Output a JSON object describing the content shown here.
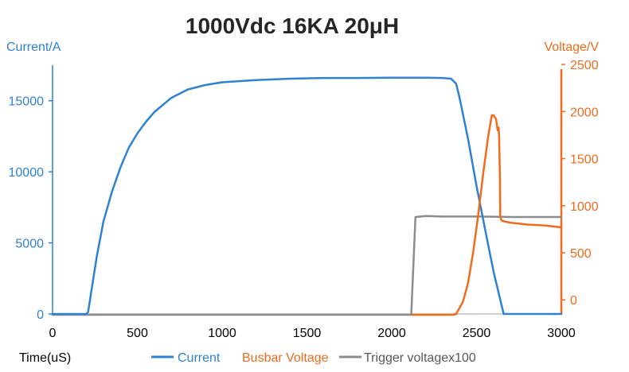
{
  "chart_data": {
    "type": "line",
    "title": "1000Vdc 16KA 20μH",
    "xlabel": "Time(uS)",
    "ylabel_left": "Current/A",
    "ylabel_right": "Voltage/V",
    "xlim": [
      0,
      3000
    ],
    "ylim_left": [
      0,
      17500
    ],
    "ylim_right": [
      -150,
      2450
    ],
    "xticks": [
      0,
      500,
      1000,
      1500,
      2000,
      2500,
      3000
    ],
    "yticks_left": [
      0,
      5000,
      10000,
      15000
    ],
    "yticks_right": [
      0,
      500,
      1000,
      1500,
      2000,
      2500
    ],
    "colors": {
      "current": "#2f82d3",
      "busbar": "#f26a1b",
      "trigger": "#8c8c8c",
      "title": "#262626"
    },
    "series": [
      {
        "name": "Current",
        "axis": "left",
        "x": [
          0,
          200,
          210,
          230,
          260,
          300,
          350,
          400,
          450,
          500,
          550,
          600,
          700,
          800,
          900,
          1000,
          1200,
          1400,
          1600,
          1800,
          2000,
          2200,
          2300,
          2350,
          2380,
          2400,
          2450,
          2500,
          2550,
          2600,
          2640,
          2660,
          3000
        ],
        "values": [
          0,
          0,
          150,
          1700,
          4000,
          6500,
          8600,
          10300,
          11700,
          12700,
          13500,
          14200,
          15200,
          15800,
          16100,
          16300,
          16450,
          16550,
          16600,
          16600,
          16620,
          16620,
          16600,
          16550,
          16200,
          15200,
          12300,
          9000,
          6000,
          3000,
          1000,
          0,
          0
        ]
      },
      {
        "name": "Busbar Voltage",
        "axis": "right",
        "x": [
          2120,
          2360,
          2380,
          2420,
          2450,
          2480,
          2510,
          2540,
          2570,
          2590,
          2600,
          2615,
          2625,
          2630,
          2633,
          2638,
          2640,
          2643,
          2650,
          2670,
          2700,
          2800,
          2900,
          3000
        ],
        "values": [
          -180,
          -180,
          -150,
          -20,
          180,
          500,
          900,
          1350,
          1750,
          1960,
          1960,
          1920,
          1800,
          1830,
          1750,
          1300,
          900,
          860,
          840,
          830,
          820,
          800,
          790,
          770
        ]
      },
      {
        "name": "Trigger voltagex100",
        "axis": "right",
        "x": [
          0,
          2115,
          2140,
          2200,
          2300,
          2500,
          2700,
          3000
        ],
        "values": [
          -180,
          -180,
          880,
          890,
          885,
          885,
          880,
          880
        ]
      }
    ]
  }
}
